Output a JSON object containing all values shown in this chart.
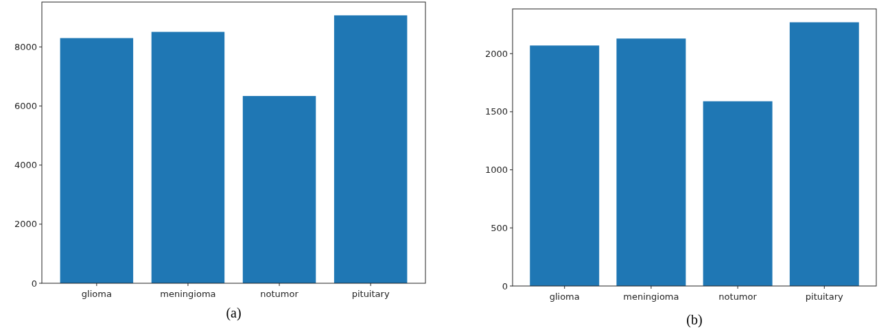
{
  "chart_data": [
    {
      "type": "bar",
      "title": "(a)",
      "categories": [
        "glioma",
        "meningioma",
        "notumor",
        "pituitary"
      ],
      "values": [
        8300,
        8510,
        6340,
        9070
      ],
      "color": "#1f77b4",
      "ylim": [
        0,
        9520
      ],
      "yticks": [
        0,
        2000,
        4000,
        6000,
        8000
      ],
      "grid": false
    },
    {
      "type": "bar",
      "title": "(b)",
      "categories": [
        "glioma",
        "meningioma",
        "notumor",
        "pituitary"
      ],
      "values": [
        2070,
        2130,
        1590,
        2270
      ],
      "color": "#1f77b4",
      "ylim": [
        0,
        2385
      ],
      "yticks": [
        0,
        500,
        1000,
        1500,
        2000
      ],
      "grid": false
    }
  ]
}
